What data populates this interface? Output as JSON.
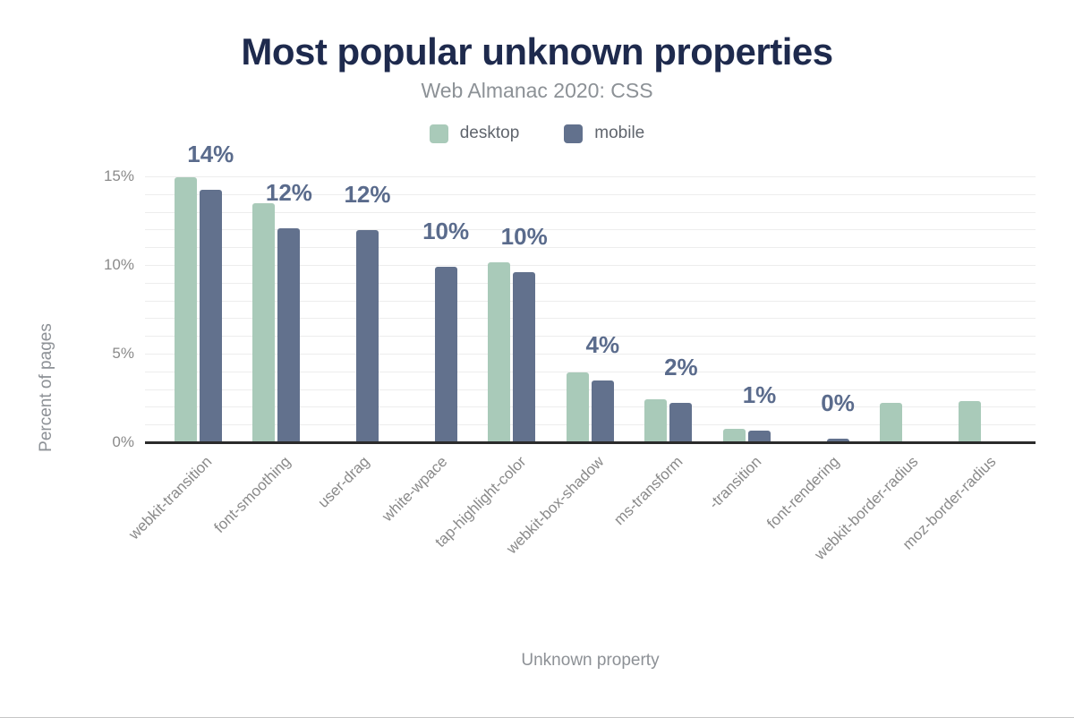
{
  "chart_data": {
    "type": "bar",
    "title": "Most popular unknown properties",
    "subtitle": "Web Almanac 2020: CSS",
    "xlabel": "Unknown property",
    "ylabel": "Percent of pages",
    "categories": [
      "webkit-transition",
      "font-smoothing",
      "user-drag",
      "white-wpace",
      "tap-highlight-color",
      "webkit-box-shadow",
      "ms-transform",
      "-transition",
      "font-rendering",
      "webkit-border-radius",
      "moz-border-radius"
    ],
    "series": [
      {
        "name": "desktop",
        "color": "#a9cab9",
        "values": [
          14.9,
          13.45,
          null,
          null,
          10.1,
          3.9,
          2.35,
          0.7,
          null,
          2.15,
          2.25
        ]
      },
      {
        "name": "mobile",
        "color": "#62718d",
        "values": [
          14.2,
          12.0,
          11.9,
          9.85,
          9.55,
          3.45,
          2.15,
          0.6,
          0.15,
          null,
          null
        ]
      }
    ],
    "data_labels": [
      "14%",
      "12%",
      "12%",
      "10%",
      "10%",
      "4%",
      "2%",
      "1%",
      "0%",
      null,
      null
    ],
    "yticks": [
      {
        "value": 0,
        "label": "0%"
      },
      {
        "value": 5,
        "label": "5%"
      },
      {
        "value": 10,
        "label": "10%"
      },
      {
        "value": 15,
        "label": "15%"
      }
    ],
    "ylim": [
      0,
      15
    ],
    "grid": "horizontal minor gridlines every 1%",
    "legend_position": "top-center"
  },
  "colors": {
    "title": "#1e2a4d",
    "subtitle": "#8c9196",
    "axis_text": "#8a8a8a",
    "data_label": "#5a6b8c",
    "axis_line": "#2b2b2b",
    "gridline": "#ededed",
    "desktop": "#a9cab9",
    "mobile": "#62718d"
  }
}
